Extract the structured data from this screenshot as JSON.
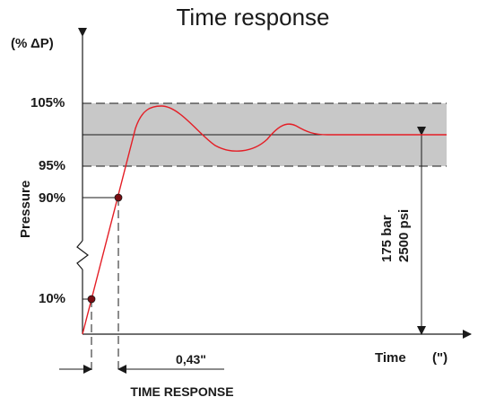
{
  "title": "Time response",
  "y_unit": "(% ΔP)",
  "y_axis_label": "Pressure",
  "x_axis_label": "Time",
  "x_unit": "(\")",
  "levels": {
    "upper_band": "105%",
    "lower_band": "95%",
    "p90": "90%",
    "p10": "10%"
  },
  "pressure_bar": "175 bar",
  "pressure_psi": "2500 psi",
  "response_time": "0,43\"",
  "time_response_label": "TIME RESPONSE",
  "colors": {
    "curve": "#e41e26",
    "band": "#c8c8c8",
    "axis": "#1a1a1a",
    "marker": "#7a0d12"
  }
}
